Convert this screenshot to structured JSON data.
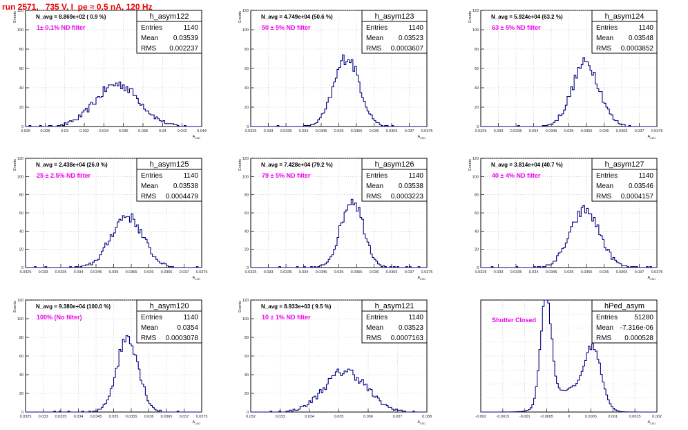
{
  "run_title": "run 2571,   735 V, I_pe ≈ 0.5 nA, 120 Hz",
  "colors": {
    "hist": "#000080",
    "note": "#ee00ee",
    "title": "#ee0000",
    "grid": "#b8b8b8"
  },
  "chart_data": [
    {
      "type": "histogram",
      "name": "h_asym122",
      "stats": {
        "entries_label": "Entries",
        "entries": "1140",
        "mean_label": "Mean",
        "mean": "0.03539",
        "rms_label": "RMS",
        "rms": "0.002237"
      },
      "n_avg": "N_avg = 8.869e+02 ( 0.9 %)",
      "note": "1± 0.1% ND filter",
      "ylabel": "Events",
      "xlabel": "A_LED",
      "xlim": [
        0.026,
        0.044
      ],
      "ylim": [
        0,
        120
      ],
      "xticks": [
        "0.026",
        "0.028",
        "0.03",
        "0.032",
        "0.034",
        "0.036",
        "0.038",
        "0.04",
        "0.042",
        "0.044"
      ],
      "yticks": [
        "0",
        "20",
        "40",
        "60",
        "80",
        "100",
        "120"
      ],
      "mean": 0.03539,
      "rms": 0.002237,
      "peak": 44,
      "entries": 1140
    },
    {
      "type": "histogram",
      "name": "h_asym123",
      "stats": {
        "entries_label": "Entries",
        "entries": "1140",
        "mean_label": "Mean",
        "mean": "0.03523",
        "rms_label": "RMS",
        "rms": "0.0003607"
      },
      "n_avg": "N_avg = 4.749e+04 (50.6 %)",
      "note": "50 ± 5% ND filter",
      "ylabel": "Events",
      "xlabel": "A_LED",
      "xlim": [
        0.0325,
        0.0375
      ],
      "ylim": [
        0,
        120
      ],
      "xticks": [
        "0.0325",
        "0.033",
        "0.0335",
        "0.034",
        "0.0345",
        "0.035",
        "0.0355",
        "0.036",
        "0.0365",
        "0.037",
        "0.0375"
      ],
      "yticks": [
        "0",
        "20",
        "40",
        "60",
        "80",
        "100",
        "120"
      ],
      "mean": 0.03523,
      "rms": 0.0003607,
      "peak": 72,
      "entries": 1140
    },
    {
      "type": "histogram",
      "name": "h_asym124",
      "stats": {
        "entries_label": "Entries",
        "entries": "1140",
        "mean_label": "Mean",
        "mean": "0.03548",
        "rms_label": "RMS",
        "rms": "0.0003852"
      },
      "n_avg": "N_avg = 5.924e+04 (63.2 %)",
      "note": "63 ± 5% ND filter",
      "ylabel": "Events",
      "xlabel": "A_LED",
      "xlim": [
        0.0325,
        0.0375
      ],
      "ylim": [
        0,
        120
      ],
      "xticks": [
        "0.0325",
        "0.033",
        "0.0335",
        "0.034",
        "0.0345",
        "0.035",
        "0.0355",
        "0.036",
        "0.0365",
        "0.037",
        "0.0375"
      ],
      "yticks": [
        "0",
        "20",
        "40",
        "60",
        "80",
        "100",
        "120"
      ],
      "mean": 0.03548,
      "rms": 0.0003852,
      "peak": 66,
      "entries": 1140
    },
    {
      "type": "histogram",
      "name": "h_asym125",
      "stats": {
        "entries_label": "Entries",
        "entries": "1140",
        "mean_label": "Mean",
        "mean": "0.03538",
        "rms_label": "RMS",
        "rms": "0.0004479"
      },
      "n_avg": "N_avg = 2.438e+04 (26.0 %)",
      "note": "25 ± 2.5% ND filter",
      "ylabel": "Events",
      "xlabel": "A_LED",
      "xlim": [
        0.0325,
        0.0375
      ],
      "ylim": [
        0,
        120
      ],
      "xticks": [
        "0.0325",
        "0.033",
        "0.0335",
        "0.034",
        "0.0345",
        "0.035",
        "0.0355",
        "0.036",
        "0.0365",
        "0.037",
        "0.0375"
      ],
      "yticks": [
        "0",
        "20",
        "40",
        "60",
        "80",
        "100",
        "120"
      ],
      "mean": 0.03538,
      "rms": 0.0004479,
      "peak": 57,
      "entries": 1140
    },
    {
      "type": "histogram",
      "name": "h_asym126",
      "stats": {
        "entries_label": "Entries",
        "entries": "1140",
        "mean_label": "Mean",
        "mean": "0.03538",
        "rms_label": "RMS",
        "rms": "0.0003223"
      },
      "n_avg": "N_avg = 7.428e+04 (79.2 %)",
      "note": "79 ± 5% ND filter",
      "ylabel": "Events",
      "xlabel": "A_LED",
      "xlim": [
        0.0325,
        0.0375
      ],
      "ylim": [
        0,
        120
      ],
      "xticks": [
        "0.0325",
        "0.033",
        "0.0335",
        "0.034",
        "0.0345",
        "0.035",
        "0.0355",
        "0.036",
        "0.0365",
        "0.037",
        "0.0375"
      ],
      "yticks": [
        "0",
        "20",
        "40",
        "60",
        "80",
        "100",
        "120"
      ],
      "mean": 0.03538,
      "rms": 0.0003223,
      "peak": 75,
      "entries": 1140
    },
    {
      "type": "histogram",
      "name": "h_asym127",
      "stats": {
        "entries_label": "Entries",
        "entries": "1140",
        "mean_label": "Mean",
        "mean": "0.03546",
        "rms_label": "RMS",
        "rms": "0.0004157"
      },
      "n_avg": "N_avg = 3.814e+04 (40.7 %)",
      "note": "40 ± 4% ND filter",
      "ylabel": "Events",
      "xlabel": "A_LED",
      "xlim": [
        0.0325,
        0.0375
      ],
      "ylim": [
        0,
        120
      ],
      "xticks": [
        "0.0325",
        "0.033",
        "0.0335",
        "0.034",
        "0.0345",
        "0.035",
        "0.0355",
        "0.036",
        "0.0365",
        "0.037",
        "0.0375"
      ],
      "yticks": [
        "0",
        "20",
        "40",
        "60",
        "80",
        "100",
        "120"
      ],
      "mean": 0.03546,
      "rms": 0.0004157,
      "peak": 63,
      "entries": 1140
    },
    {
      "type": "histogram",
      "name": "h_asym120",
      "stats": {
        "entries_label": "Entries",
        "entries": "1140",
        "mean_label": "Mean",
        "mean": "0.0354",
        "rms_label": "RMS",
        "rms": "0.0003078"
      },
      "n_avg": "N_avg = 9.380e+04 (100.0 %)",
      "note": "100% (No filter)",
      "ylabel": "Events",
      "xlabel": "A_LED",
      "xlim": [
        0.0325,
        0.0375
      ],
      "ylim": [
        0,
        120
      ],
      "xticks": [
        "0.0325",
        "0.033",
        "0.0335",
        "0.034",
        "0.0345",
        "0.035",
        "0.0355",
        "0.036",
        "0.0365",
        "0.037",
        "0.0375"
      ],
      "yticks": [
        "0",
        "20",
        "40",
        "60",
        "80",
        "100",
        "120"
      ],
      "mean": 0.0354,
      "rms": 0.0003078,
      "peak": 81,
      "entries": 1140
    },
    {
      "type": "histogram",
      "name": "h_asym121",
      "stats": {
        "entries_label": "Entries",
        "entries": "1140",
        "mean_label": "Mean",
        "mean": "0.03523",
        "rms_label": "RMS",
        "rms": "0.0007163"
      },
      "n_avg": "N_avg = 8.933e+03 ( 9.5 %)",
      "note": "10 ± 1% ND filter",
      "ylabel": "Events",
      "xlabel": "A_LED",
      "xlim": [
        0.032,
        0.038
      ],
      "ylim": [
        0,
        120
      ],
      "xticks": [
        "0.032",
        "0.033",
        "0.034",
        "0.035",
        "0.036",
        "0.037",
        "0.038"
      ],
      "yticks": [
        "0",
        "20",
        "40",
        "60",
        "80",
        "100",
        "120"
      ],
      "mean": 0.03523,
      "rms": 0.0007163,
      "peak": 44,
      "entries": 1140
    },
    {
      "type": "histogram",
      "name": "hPed_asym",
      "stats": {
        "entries_label": "Entries",
        "entries": "51280",
        "mean_label": "Mean",
        "mean": "-7.316e-06",
        "rms_label": "RMS",
        "rms": "0.000528"
      },
      "n_avg": "",
      "note": "Shutter Closed",
      "ylabel": "",
      "xlabel": "A_LED",
      "xlim": [
        -0.002,
        0.002
      ],
      "ylim": [
        0,
        2400
      ],
      "xticks": [
        "-0.002",
        "-0.0015",
        "-0.001",
        "-0.0005",
        "0",
        "0.0005",
        "0.001",
        "0.0015",
        "0.002"
      ],
      "yticks": [],
      "bimodal": {
        "peak1_x": -0.00052,
        "peak1_y": 2380,
        "peak2_x": 0.00055,
        "peak2_y": 1230,
        "valley_x": -0.0001,
        "valley_y": 620,
        "sigma1": 0.00012,
        "sigma2": 0.00019
      }
    }
  ]
}
